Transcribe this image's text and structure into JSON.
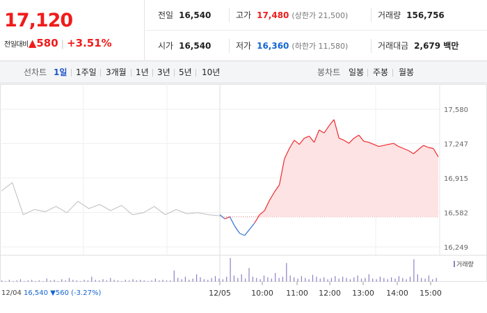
{
  "quote": {
    "price": "17,120",
    "change_label": "전일대비",
    "change_arrow": "▲",
    "change_value": "580",
    "change_rate": "+3.51%"
  },
  "stats": {
    "prev_close": {
      "label": "전일",
      "value": "16,540"
    },
    "high": {
      "label": "고가",
      "value": "17,480",
      "sub": "(상한가 21,500)"
    },
    "volume": {
      "label": "거래량",
      "value": "156,756"
    },
    "open": {
      "label": "시가",
      "value": "16,540"
    },
    "low": {
      "label": "저가",
      "value": "16,360",
      "sub": "(하한가 11,580)"
    },
    "amount": {
      "label": "거래대금",
      "value": "2,679 백만"
    }
  },
  "tabs": {
    "line_label": "선차트",
    "line_periods": [
      "1일",
      "1주일",
      "3개월",
      "1년",
      "3년",
      "5년",
      "10년"
    ],
    "active_period": "1일",
    "candle_label": "봉차트",
    "candle_periods": [
      "일봉",
      "주봉",
      "월봉"
    ]
  },
  "chart_data": {
    "type": "line",
    "title": "",
    "y_ticks": [
      "17,580",
      "17,247",
      "16,915",
      "16,582",
      "16,249"
    ],
    "y_tick_values": [
      17580,
      17247,
      16915,
      16582,
      16249
    ],
    "x_ticks": [
      "12/05",
      "10:00",
      "11:00",
      "12:00",
      "13:00",
      "14:00",
      "15:00"
    ],
    "baseline": 16540,
    "prev_day": {
      "date": "12/04",
      "close": "16,540",
      "change": "▼560",
      "rate": "(-3.27%)",
      "x": [
        0,
        1,
        2,
        3,
        4,
        5,
        6,
        7,
        8,
        9,
        10,
        11,
        12,
        13,
        14,
        15,
        16,
        17,
        18,
        19,
        20
      ],
      "y": [
        16790,
        16870,
        16560,
        16610,
        16590,
        16640,
        16580,
        16690,
        16620,
        16660,
        16600,
        16650,
        16560,
        16580,
        16640,
        16560,
        16610,
        16570,
        16580,
        16560,
        16550
      ]
    },
    "today": {
      "x_times": [
        "09:00",
        "09:05",
        "09:10",
        "09:15",
        "09:20",
        "09:25",
        "09:30",
        "09:35",
        "09:40",
        "09:45",
        "09:50",
        "09:55",
        "10:00",
        "10:10",
        "10:20",
        "10:30",
        "10:40",
        "10:50",
        "11:00",
        "11:10",
        "11:20",
        "11:30",
        "11:40",
        "11:50",
        "12:00",
        "12:10",
        "12:20",
        "12:30",
        "12:40",
        "12:50",
        "13:00",
        "13:10",
        "13:20",
        "13:30",
        "13:40",
        "13:50",
        "14:00",
        "14:10",
        "14:20",
        "14:30",
        "14:40",
        "14:50",
        "15:00",
        "15:10",
        "15:20"
      ],
      "y": [
        16560,
        16520,
        16540,
        16450,
        16380,
        16360,
        16420,
        16480,
        16560,
        16600,
        16700,
        16780,
        16850,
        17100,
        17200,
        17280,
        17240,
        17300,
        17320,
        17260,
        17380,
        17350,
        17420,
        17480,
        17300,
        17280,
        17250,
        17300,
        17330,
        17270,
        17260,
        17240,
        17220,
        17230,
        17240,
        17250,
        17220,
        17200,
        17180,
        17150,
        17190,
        17230,
        17210,
        17200,
        17120
      ]
    },
    "volume_legend": "거래량",
    "volume_bars": [
      2,
      1,
      3,
      1,
      2,
      4,
      1,
      2,
      3,
      1,
      2,
      1,
      5,
      2,
      3,
      1,
      4,
      2,
      6,
      3,
      2,
      1,
      3,
      2,
      8,
      3,
      2,
      4,
      2,
      6,
      3,
      2,
      1,
      3,
      2,
      4,
      2,
      3,
      2,
      1,
      2,
      5,
      2,
      3,
      2,
      2,
      18,
      6,
      4,
      8,
      3,
      5,
      12,
      7,
      4,
      3,
      6,
      9,
      5,
      4,
      8,
      38,
      10,
      6,
      12,
      5,
      22,
      8,
      6,
      4,
      10,
      7,
      5,
      14,
      6,
      8,
      30,
      10,
      7,
      5,
      9,
      6,
      4,
      11,
      8,
      5,
      7,
      4,
      6,
      9,
      5,
      8,
      6,
      4,
      7,
      10,
      5,
      6,
      12,
      5,
      4,
      8,
      6,
      4,
      7,
      5,
      9,
      6,
      4,
      8,
      36,
      12,
      6,
      5,
      10,
      4,
      6
    ]
  }
}
